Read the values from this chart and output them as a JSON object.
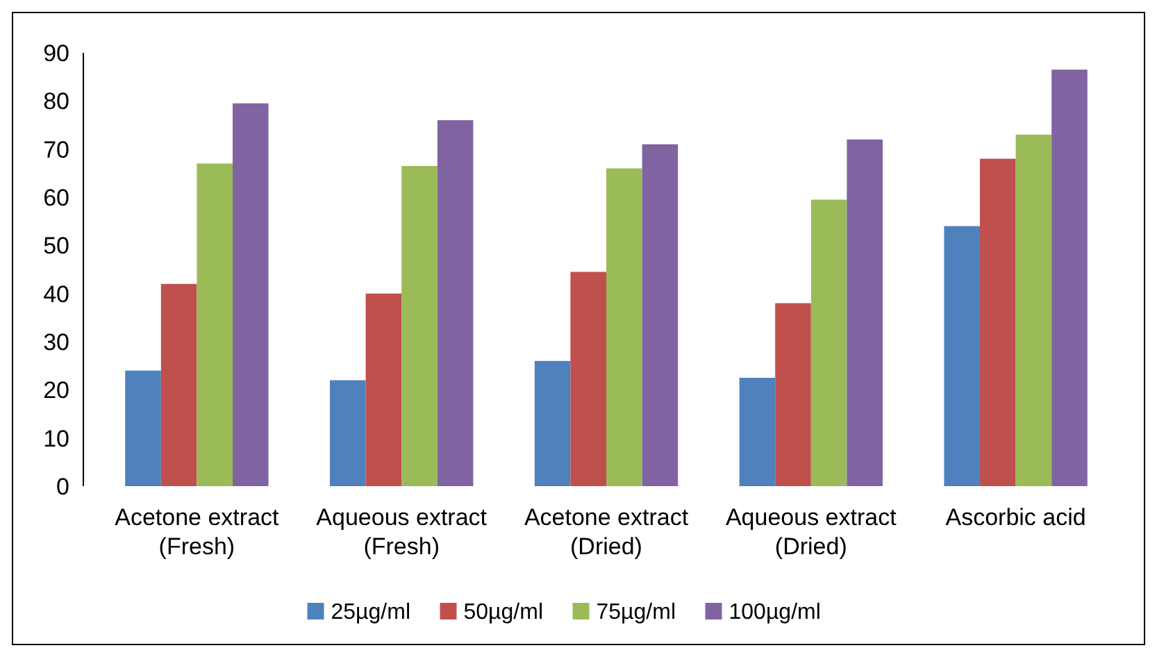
{
  "chart_data": {
    "type": "bar",
    "categories": [
      "Acetone extract (Fresh)",
      "Aqueous extract (Fresh)",
      "Acetone extract (Dried)",
      "Aqueous extract (Dried)",
      "Ascorbic acid"
    ],
    "series": [
      {
        "name": "25µg/ml",
        "color": "#4f81bd",
        "values": [
          24,
          22,
          26,
          22.5,
          54
        ]
      },
      {
        "name": "50µg/ml",
        "color": "#c0504d",
        "values": [
          42,
          40,
          44.5,
          38,
          68
        ]
      },
      {
        "name": "75µg/ml",
        "color": "#9bbb59",
        "values": [
          67,
          66.5,
          66,
          59.5,
          73
        ]
      },
      {
        "name": "100µg/ml",
        "color": "#8064a2",
        "values": [
          79.5,
          76,
          71,
          72,
          86.5
        ]
      }
    ],
    "ylim": [
      0,
      90
    ],
    "yticks": [
      0,
      10,
      20,
      30,
      40,
      50,
      60,
      70,
      80,
      90
    ],
    "legend": "bottom"
  }
}
